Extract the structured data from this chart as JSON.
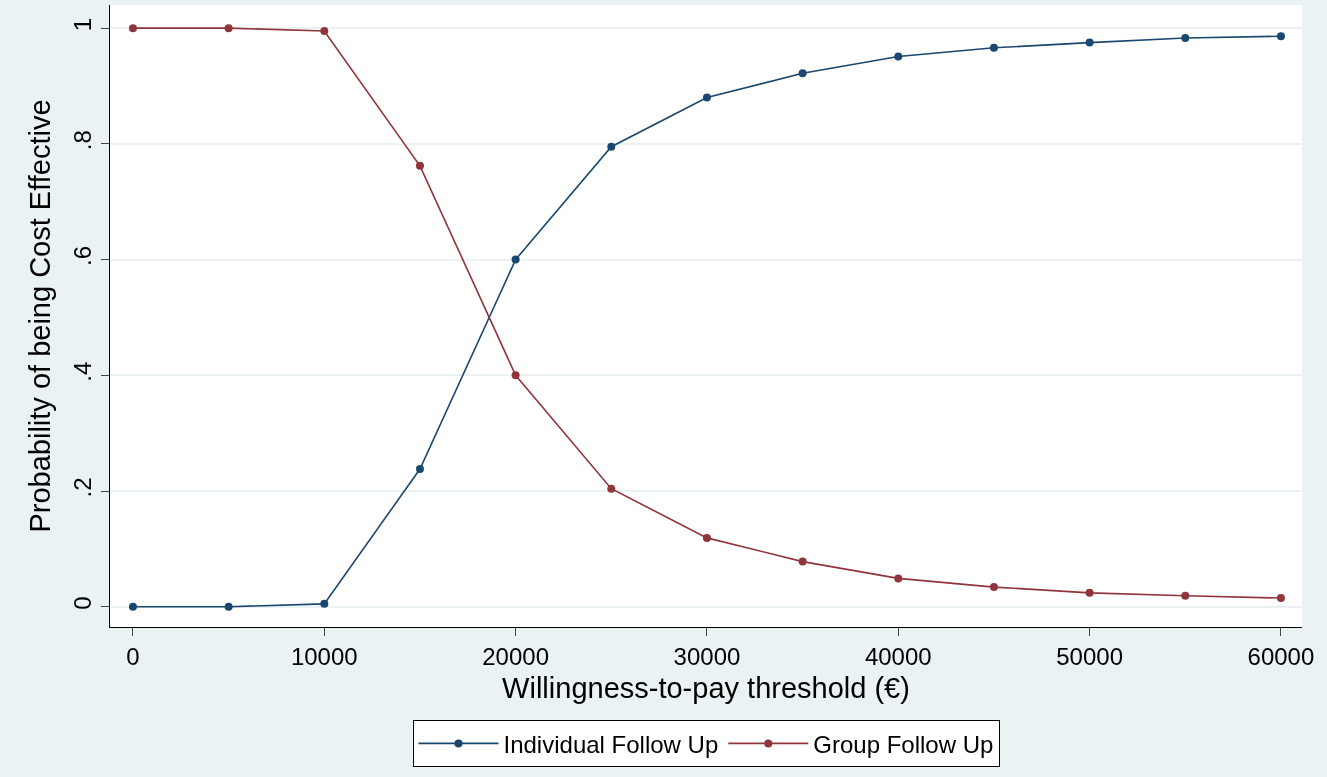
{
  "chart_data": {
    "type": "line",
    "xlabel": "Willingness-to-pay threshold (€)",
    "ylabel": "Probability of being Cost Effective",
    "x": [
      0,
      5000,
      10000,
      15000,
      20000,
      25000,
      30000,
      35000,
      40000,
      45000,
      50000,
      55000,
      60000
    ],
    "series": [
      {
        "name": "Individual Follow Up",
        "color": "#1a476f",
        "values": [
          0,
          0,
          0.005,
          0.238,
          0.6,
          0.795,
          0.88,
          0.922,
          0.951,
          0.966,
          0.975,
          0.983,
          0.986
        ]
      },
      {
        "name": "Group Follow Up",
        "color": "#90353b",
        "values": [
          1,
          1,
          0.995,
          0.762,
          0.4,
          0.204,
          0.119,
          0.078,
          0.049,
          0.034,
          0.024,
          0.019,
          0.015
        ]
      }
    ],
    "xlim": [
      -1200,
      61100
    ],
    "ylim": [
      -0.035,
      1.04
    ],
    "xticks": [
      0,
      10000,
      20000,
      30000,
      40000,
      50000,
      60000
    ],
    "yticks": [
      0,
      {
        "value": 0.2,
        "label": ".2"
      },
      {
        "value": 0.4,
        "label": ".4"
      },
      {
        "value": 0.6,
        "label": ".6"
      },
      {
        "value": 0.8,
        "label": ".8"
      },
      1
    ],
    "grid": "y",
    "legend": "bottom",
    "marker": "circle",
    "line_style": "solid"
  }
}
